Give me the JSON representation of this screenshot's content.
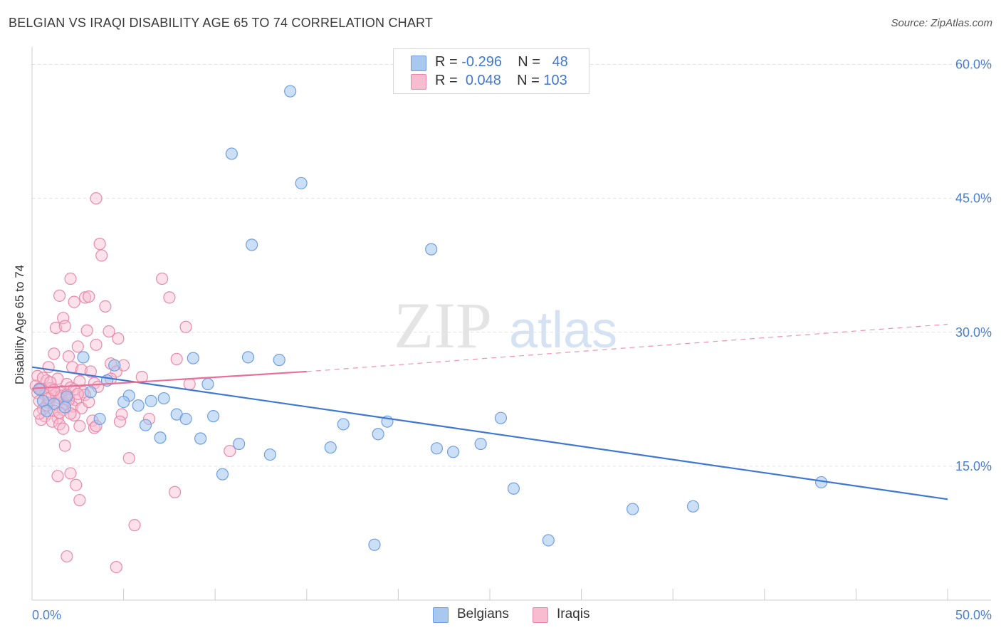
{
  "title": "BELGIAN VS IRAQI DISABILITY AGE 65 TO 74 CORRELATION CHART",
  "source": "Source: ZipAtlas.com",
  "watermark": {
    "zip": "ZIP",
    "atlas": "atlas"
  },
  "legend": {
    "rows": [
      {
        "r_label": "R =",
        "r_value": "-0.296",
        "n_label": "N =",
        "n_value": "48",
        "color": "#a8c8f0",
        "border": "#6f9fe0"
      },
      {
        "r_label": "R =",
        "r_value": "0.048",
        "n_label": "N =",
        "n_value": "103",
        "color": "#f8bcd0",
        "border": "#e888a8"
      }
    ]
  },
  "bottom_legend": [
    {
      "label": "Belgians",
      "color": "#a8c8f0",
      "border": "#6f9fe0"
    },
    {
      "label": "Iraqis",
      "color": "#f8bcd0",
      "border": "#e888a8"
    }
  ],
  "chart_data": {
    "type": "scatter",
    "xlabel": "",
    "ylabel": "Disability Age 65 to 74",
    "xlim": [
      0,
      50
    ],
    "ylim": [
      0,
      61
    ],
    "x_tick_labels": [
      "0.0%",
      "50.0%"
    ],
    "y_ticks": [
      {
        "value": 15,
        "label": "15.0%"
      },
      {
        "value": 30,
        "label": "30.0%"
      },
      {
        "value": 45,
        "label": "45.0%"
      },
      {
        "value": 60,
        "label": "60.0%"
      }
    ],
    "grid": true,
    "colors": {
      "belgians": "#3f78d4",
      "iraqis": "#e8709a"
    },
    "series": [
      {
        "name": "Belgians",
        "points": [
          [
            14.1,
            57.0
          ],
          [
            10.9,
            50.0
          ],
          [
            14.7,
            46.7
          ],
          [
            12.0,
            39.8
          ],
          [
            21.8,
            39.3
          ],
          [
            2.8,
            27.2
          ],
          [
            4.5,
            26.3
          ],
          [
            8.8,
            27.1
          ],
          [
            11.8,
            27.2
          ],
          [
            13.5,
            26.9
          ],
          [
            4.1,
            24.6
          ],
          [
            9.6,
            24.2
          ],
          [
            0.4,
            23.6
          ],
          [
            1.9,
            22.8
          ],
          [
            3.2,
            23.3
          ],
          [
            5.3,
            22.9
          ],
          [
            6.5,
            22.3
          ],
          [
            7.2,
            22.6
          ],
          [
            5.0,
            22.2
          ],
          [
            0.6,
            22.3
          ],
          [
            1.2,
            22.0
          ],
          [
            1.8,
            21.6
          ],
          [
            5.8,
            21.8
          ],
          [
            7.9,
            20.8
          ],
          [
            8.4,
            20.3
          ],
          [
            9.9,
            20.6
          ],
          [
            3.7,
            20.3
          ],
          [
            6.2,
            19.6
          ],
          [
            17.0,
            19.7
          ],
          [
            19.4,
            20.0
          ],
          [
            18.9,
            18.6
          ],
          [
            7.0,
            18.2
          ],
          [
            9.2,
            18.1
          ],
          [
            11.3,
            17.5
          ],
          [
            16.3,
            17.1
          ],
          [
            22.1,
            17.0
          ],
          [
            23.0,
            16.6
          ],
          [
            24.5,
            17.5
          ],
          [
            13.0,
            16.3
          ],
          [
            25.6,
            20.4
          ],
          [
            10.4,
            14.1
          ],
          [
            26.3,
            12.5
          ],
          [
            32.8,
            10.2
          ],
          [
            36.1,
            10.5
          ],
          [
            43.1,
            13.2
          ],
          [
            18.7,
            6.2
          ],
          [
            28.2,
            6.7
          ],
          [
            0.8,
            21.2
          ]
        ]
      },
      {
        "name": "Iraqis",
        "points": [
          [
            3.5,
            45.0
          ],
          [
            3.7,
            39.9
          ],
          [
            3.8,
            38.6
          ],
          [
            7.1,
            36.0
          ],
          [
            2.1,
            36.0
          ],
          [
            1.5,
            34.1
          ],
          [
            2.3,
            33.4
          ],
          [
            2.9,
            33.9
          ],
          [
            3.1,
            34.0
          ],
          [
            7.5,
            33.9
          ],
          [
            4.0,
            32.9
          ],
          [
            1.7,
            31.6
          ],
          [
            1.3,
            30.5
          ],
          [
            1.8,
            30.7
          ],
          [
            3.0,
            30.2
          ],
          [
            4.2,
            30.1
          ],
          [
            8.4,
            30.6
          ],
          [
            4.7,
            29.3
          ],
          [
            3.5,
            28.6
          ],
          [
            1.2,
            27.6
          ],
          [
            2.0,
            27.3
          ],
          [
            2.5,
            28.4
          ],
          [
            7.9,
            27.0
          ],
          [
            4.3,
            26.5
          ],
          [
            0.9,
            26.1
          ],
          [
            2.2,
            26.1
          ],
          [
            2.7,
            25.8
          ],
          [
            3.2,
            25.6
          ],
          [
            4.6,
            25.6
          ],
          [
            0.3,
            25.1
          ],
          [
            0.8,
            24.6
          ],
          [
            1.4,
            24.8
          ],
          [
            1.9,
            24.2
          ],
          [
            2.6,
            24.5
          ],
          [
            3.4,
            24.3
          ],
          [
            4.3,
            24.8
          ],
          [
            6.0,
            25.0
          ],
          [
            8.6,
            24.2
          ],
          [
            0.2,
            24.0
          ],
          [
            0.5,
            23.6
          ],
          [
            1.0,
            23.7
          ],
          [
            1.6,
            23.4
          ],
          [
            2.1,
            23.8
          ],
          [
            2.8,
            23.3
          ],
          [
            3.6,
            23.9
          ],
          [
            0.3,
            23.2
          ],
          [
            0.7,
            23.0
          ],
          [
            1.1,
            22.9
          ],
          [
            1.5,
            22.6
          ],
          [
            2.0,
            22.7
          ],
          [
            2.4,
            22.4
          ],
          [
            2.9,
            23.0
          ],
          [
            0.4,
            22.3
          ],
          [
            0.9,
            22.1
          ],
          [
            1.3,
            21.9
          ],
          [
            1.8,
            22.0
          ],
          [
            2.2,
            21.7
          ],
          [
            0.6,
            21.4
          ],
          [
            1.2,
            21.2
          ],
          [
            1.7,
            21.3
          ],
          [
            2.7,
            21.5
          ],
          [
            4.9,
            20.8
          ],
          [
            0.7,
            20.6
          ],
          [
            1.4,
            20.4
          ],
          [
            2.3,
            20.7
          ],
          [
            0.5,
            20.2
          ],
          [
            1.1,
            20.0
          ],
          [
            3.3,
            20.1
          ],
          [
            4.8,
            20.0
          ],
          [
            6.4,
            20.3
          ],
          [
            1.5,
            19.7
          ],
          [
            2.6,
            19.5
          ],
          [
            3.4,
            19.3
          ],
          [
            1.7,
            19.2
          ],
          [
            3.5,
            19.5
          ],
          [
            1.8,
            17.3
          ],
          [
            5.3,
            15.9
          ],
          [
            10.8,
            16.7
          ],
          [
            2.1,
            14.2
          ],
          [
            1.4,
            13.9
          ],
          [
            2.4,
            12.9
          ],
          [
            7.8,
            12.1
          ],
          [
            2.6,
            11.2
          ],
          [
            5.6,
            8.4
          ],
          [
            1.9,
            4.9
          ],
          [
            4.6,
            3.7
          ],
          [
            0.4,
            23.7
          ],
          [
            0.6,
            24.9
          ],
          [
            1.0,
            24.4
          ],
          [
            1.3,
            23.1
          ],
          [
            1.6,
            22.9
          ],
          [
            2.0,
            22.4
          ],
          [
            2.3,
            23.6
          ],
          [
            2.5,
            23.1
          ],
          [
            3.1,
            22.2
          ],
          [
            0.8,
            21.8
          ],
          [
            1.5,
            21.0
          ],
          [
            2.1,
            20.9
          ],
          [
            0.4,
            20.9
          ],
          [
            0.9,
            22.6
          ],
          [
            1.2,
            23.5
          ],
          [
            1.9,
            23.0
          ],
          [
            5.0,
            26.3
          ]
        ]
      }
    ],
    "trend_lines": [
      {
        "series": "Belgians",
        "solid": [
          [
            0,
            26.1
          ],
          [
            50,
            11.3
          ]
        ]
      },
      {
        "series": "Iraqis",
        "solid": [
          [
            0,
            23.7
          ],
          [
            15,
            25.6
          ]
        ],
        "dashed": [
          [
            15,
            25.6
          ],
          [
            50,
            30.9
          ]
        ]
      }
    ]
  }
}
